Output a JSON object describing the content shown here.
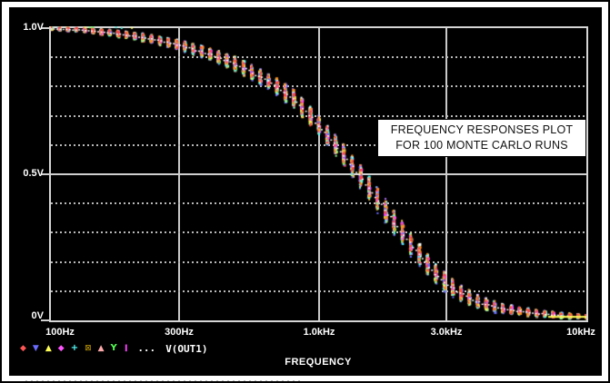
{
  "colors": {
    "screen_bg": "#000000",
    "page_bg": "#ffffff",
    "grid": "#c9c9c9",
    "text": "#ffffff",
    "annotation_bg": "#ffffff",
    "annotation_text": "#111111"
  },
  "y_axis": {
    "labels": [
      {
        "text": "1.0V",
        "v": 1.0
      },
      {
        "text": "0.5V",
        "v": 0.5
      },
      {
        "text": "0V",
        "v": 0.0
      }
    ]
  },
  "x_axis": {
    "title": "FREQUENCY",
    "labels": [
      {
        "text": "100Hz",
        "f": 100
      },
      {
        "text": "300Hz",
        "f": 300
      },
      {
        "text": "1.0kHz",
        "f": 1000
      },
      {
        "text": "3.0kHz",
        "f": 3000
      },
      {
        "text": "10kHz",
        "f": 10000
      }
    ]
  },
  "legend": {
    "markers": [
      {
        "name": "diamond-marker-icon",
        "glyph": "◆",
        "color": "#ff5555"
      },
      {
        "name": "triangle-down-marker-icon",
        "glyph": "▼",
        "color": "#6b6bff"
      },
      {
        "name": "triangle-up-marker-icon",
        "glyph": "▲",
        "color": "#ffff55"
      },
      {
        "name": "diamond-marker-icon",
        "glyph": "◆",
        "color": "#ff55ff"
      },
      {
        "name": "plus-marker-icon",
        "glyph": "+",
        "color": "#55ffff"
      },
      {
        "name": "boxed-x-marker-icon",
        "glyph": "⊠",
        "color": "#c8a000"
      },
      {
        "name": "triangle-up-marker-icon",
        "glyph": "▲",
        "color": "#ffaaaa"
      },
      {
        "name": "y-marker-icon",
        "glyph": "Y",
        "color": "#55ff55"
      },
      {
        "name": "bar-marker-icon",
        "glyph": "▮",
        "color": "#ff44ff"
      }
    ],
    "ellipsis": "...",
    "trace_name": "V(OUT1)"
  },
  "annotation": {
    "line1": "FREQUENCY RESPONSES PLOT",
    "line2": "FOR 100 MONTE CARLO RUNS"
  },
  "chart_data": {
    "type": "scatter",
    "title": "",
    "xlabel": "FREQUENCY",
    "ylabel": "",
    "x_scale": "log",
    "xlim": [
      100,
      10000
    ],
    "ylim": [
      0,
      1.0
    ],
    "x_ticks": [
      100,
      300,
      1000,
      3000,
      10000
    ],
    "x_tick_labels": [
      "100Hz",
      "300Hz",
      "1.0kHz",
      "3.0kHz",
      "10kHz"
    ],
    "y_ticks": [
      0,
      0.5,
      1.0
    ],
    "y_tick_labels": [
      "0V",
      "0.5V",
      "1.0V"
    ],
    "y_minor_step": 0.1,
    "grid": "solid-majors-dotted-minors",
    "legend_position": "bottom-left",
    "trace": "V(OUT1)",
    "runs": 100,
    "annotation": "FREQUENCY RESPONSES PLOT FOR 100 MONTE CARLO RUNS",
    "center_curve": {
      "f": [
        100,
        130,
        170,
        220,
        300,
        400,
        500,
        650,
        800,
        1000,
        1200,
        1500,
        1800,
        2200,
        2700,
        3300,
        4000,
        5000,
        6500,
        8000,
        10000
      ],
      "v": [
        1.0,
        0.995,
        0.985,
        0.97,
        0.945,
        0.91,
        0.875,
        0.82,
        0.765,
        0.67,
        0.585,
        0.47,
        0.37,
        0.265,
        0.165,
        0.1,
        0.062,
        0.04,
        0.026,
        0.018,
        0.013
      ]
    },
    "half_spread": {
      "f": [
        100,
        200,
        300,
        500,
        800,
        1000,
        1500,
        2000,
        2700,
        3300,
        4000,
        5000,
        7000,
        10000
      ],
      "v": [
        0.006,
        0.013,
        0.02,
        0.028,
        0.035,
        0.038,
        0.045,
        0.048,
        0.04,
        0.033,
        0.025,
        0.018,
        0.012,
        0.008
      ]
    },
    "palette": [
      "#ff4040",
      "#40ffff",
      "#ffff40",
      "#ff40ff",
      "#40ff40",
      "#6a6aff",
      "#ffffff",
      "#ff9020",
      "#ff90c8",
      "#b070ff",
      "#ffd050",
      "#90ff90"
    ]
  }
}
